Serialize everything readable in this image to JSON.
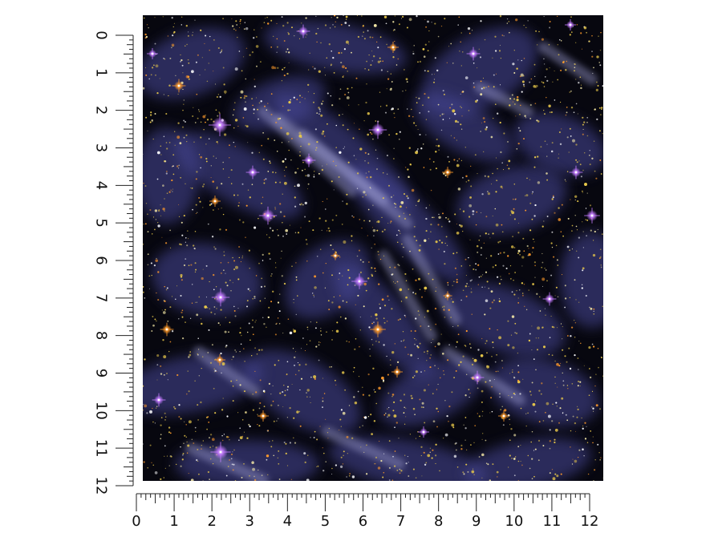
{
  "product": {
    "swatch_name": "galaxy-nebula-vinyl-wrap",
    "pattern": "starfield with violet nebula clouds and golden star speckles",
    "colors": {
      "background": "#07070f",
      "nebula": "#4a4a9a",
      "nebula_light": "#9b9bd0",
      "gold_stars": "#e8c84a",
      "orange_stars": "#ff9a2a",
      "violet_stars": "#c47bff",
      "ruler_ink": "#222222"
    }
  },
  "rulers": {
    "unit": "inches",
    "vertical": {
      "labels": [
        "0",
        "1",
        "2",
        "3",
        "4",
        "5",
        "6",
        "7",
        "8",
        "9",
        "10",
        "11",
        "12"
      ]
    },
    "horizontal": {
      "labels": [
        "0",
        "1",
        "2",
        "3",
        "4",
        "5",
        "6",
        "7",
        "8",
        "9",
        "10",
        "11",
        "12"
      ]
    }
  }
}
